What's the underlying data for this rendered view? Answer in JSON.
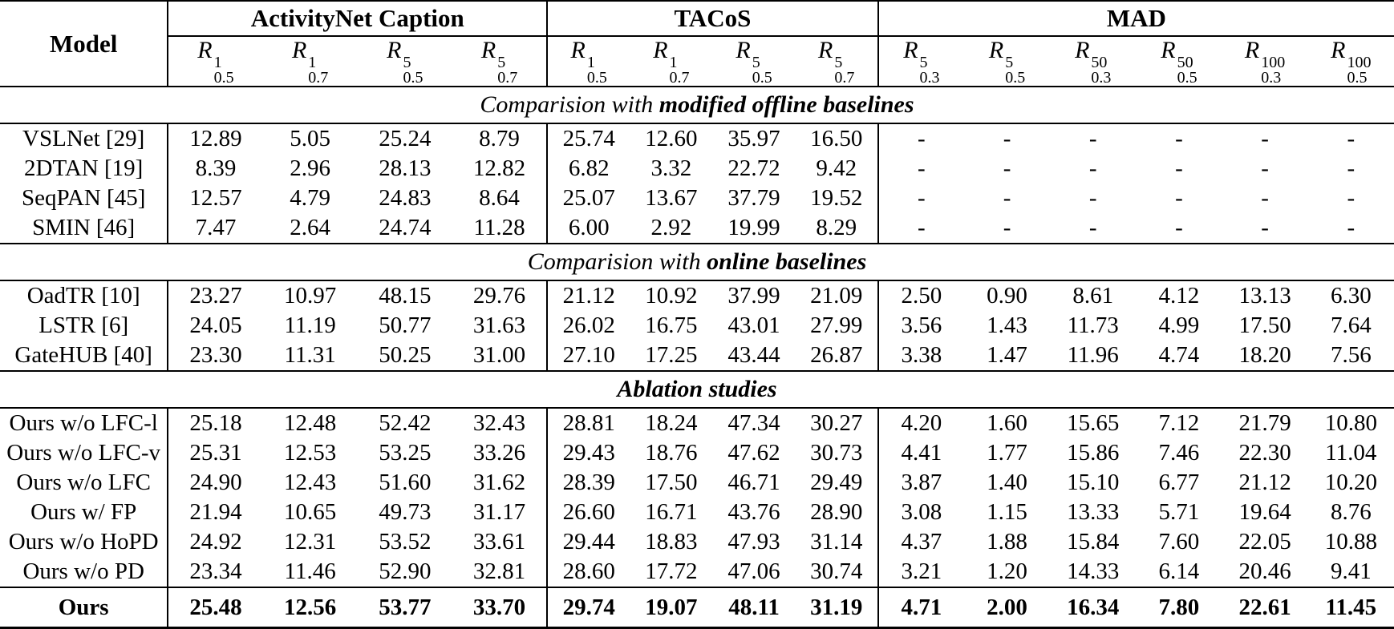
{
  "table": {
    "model_header": "Model",
    "groups": [
      {
        "label": "ActivityNet Caption",
        "span": 4
      },
      {
        "label": "TACoS",
        "span": 4
      },
      {
        "label": "MAD",
        "span": 6
      }
    ],
    "metrics": [
      {
        "base": "R",
        "sup": "1",
        "sub": "0.5"
      },
      {
        "base": "R",
        "sup": "1",
        "sub": "0.7"
      },
      {
        "base": "R",
        "sup": "5",
        "sub": "0.5"
      },
      {
        "base": "R",
        "sup": "5",
        "sub": "0.7"
      },
      {
        "base": "R",
        "sup": "1",
        "sub": "0.5"
      },
      {
        "base": "R",
        "sup": "1",
        "sub": "0.7"
      },
      {
        "base": "R",
        "sup": "5",
        "sub": "0.5"
      },
      {
        "base": "R",
        "sup": "5",
        "sub": "0.7"
      },
      {
        "base": "R",
        "sup": "5",
        "sub": "0.3"
      },
      {
        "base": "R",
        "sup": "5",
        "sub": "0.5"
      },
      {
        "base": "R",
        "sup": "50",
        "sub": "0.3"
      },
      {
        "base": "R",
        "sup": "50",
        "sub": "0.5"
      },
      {
        "base": "R",
        "sup": "100",
        "sub": "0.3"
      },
      {
        "base": "R",
        "sup": "100",
        "sub": "0.5"
      }
    ],
    "sections": [
      {
        "title_prefix": "Comparision with ",
        "title_bold": "modified offline baselines",
        "rows": [
          {
            "model": "VSLNet [29]",
            "values": [
              "12.89",
              "5.05",
              "25.24",
              "8.79",
              "25.74",
              "12.60",
              "35.97",
              "16.50",
              "-",
              "-",
              "-",
              "-",
              "-",
              "-"
            ]
          },
          {
            "model": "2DTAN [19]",
            "values": [
              "8.39",
              "2.96",
              "28.13",
              "12.82",
              "6.82",
              "3.32",
              "22.72",
              "9.42",
              "-",
              "-",
              "-",
              "-",
              "-",
              "-"
            ]
          },
          {
            "model": "SeqPAN [45]",
            "values": [
              "12.57",
              "4.79",
              "24.83",
              "8.64",
              "25.07",
              "13.67",
              "37.79",
              "19.52",
              "-",
              "-",
              "-",
              "-",
              "-",
              "-"
            ]
          },
          {
            "model": "SMIN [46]",
            "values": [
              "7.47",
              "2.64",
              "24.74",
              "11.28",
              "6.00",
              "2.92",
              "19.99",
              "8.29",
              "-",
              "-",
              "-",
              "-",
              "-",
              "-"
            ]
          }
        ]
      },
      {
        "title_prefix": "Comparision with ",
        "title_bold": "online baselines",
        "rows": [
          {
            "model": "OadTR [10]",
            "values": [
              "23.27",
              "10.97",
              "48.15",
              "29.76",
              "21.12",
              "10.92",
              "37.99",
              "21.09",
              "2.50",
              "0.90",
              "8.61",
              "4.12",
              "13.13",
              "6.30"
            ]
          },
          {
            "model": "LSTR [6]",
            "values": [
              "24.05",
              "11.19",
              "50.77",
              "31.63",
              "26.02",
              "16.75",
              "43.01",
              "27.99",
              "3.56",
              "1.43",
              "11.73",
              "4.99",
              "17.50",
              "7.64"
            ]
          },
          {
            "model": "GateHUB [40]",
            "values": [
              "23.30",
              "11.31",
              "50.25",
              "31.00",
              "27.10",
              "17.25",
              "43.44",
              "26.87",
              "3.38",
              "1.47",
              "11.96",
              "4.74",
              "18.20",
              "7.56"
            ]
          }
        ]
      },
      {
        "title_prefix": "",
        "title_bold": "Ablation studies",
        "rows": [
          {
            "model": "Ours w/o LFC-l",
            "values": [
              "25.18",
              "12.48",
              "52.42",
              "32.43",
              "28.81",
              "18.24",
              "47.34",
              "30.27",
              "4.20",
              "1.60",
              "15.65",
              "7.12",
              "21.79",
              "10.80"
            ]
          },
          {
            "model": "Ours w/o LFC-v",
            "values": [
              "25.31",
              "12.53",
              "53.25",
              "33.26",
              "29.43",
              "18.76",
              "47.62",
              "30.73",
              "4.41",
              "1.77",
              "15.86",
              "7.46",
              "22.30",
              "11.04"
            ]
          },
          {
            "model": "Ours w/o LFC",
            "values": [
              "24.90",
              "12.43",
              "51.60",
              "31.62",
              "28.39",
              "17.50",
              "46.71",
              "29.49",
              "3.87",
              "1.40",
              "15.10",
              "6.77",
              "21.12",
              "10.20"
            ]
          },
          {
            "model": "Ours w/ FP",
            "values": [
              "21.94",
              "10.65",
              "49.73",
              "31.17",
              "26.60",
              "16.71",
              "43.76",
              "28.90",
              "3.08",
              "1.15",
              "13.33",
              "5.71",
              "19.64",
              "8.76"
            ]
          },
          {
            "model": "Ours w/o HoPD",
            "values": [
              "24.92",
              "12.31",
              "53.52",
              "33.61",
              "29.44",
              "18.83",
              "47.93",
              "31.14",
              "4.37",
              "1.88",
              "15.84",
              "7.60",
              "22.05",
              "10.88"
            ]
          },
          {
            "model": "Ours w/o PD",
            "values": [
              "23.34",
              "11.46",
              "52.90",
              "32.81",
              "28.60",
              "17.72",
              "47.06",
              "30.74",
              "3.21",
              "1.20",
              "14.33",
              "6.14",
              "20.46",
              "9.41"
            ]
          }
        ]
      }
    ],
    "final_row": {
      "model": "Ours",
      "values": [
        "25.48",
        "12.56",
        "53.77",
        "33.70",
        "29.74",
        "19.07",
        "48.11",
        "31.19",
        "4.71",
        "2.00",
        "16.34",
        "7.80",
        "22.61",
        "11.45"
      ]
    }
  }
}
